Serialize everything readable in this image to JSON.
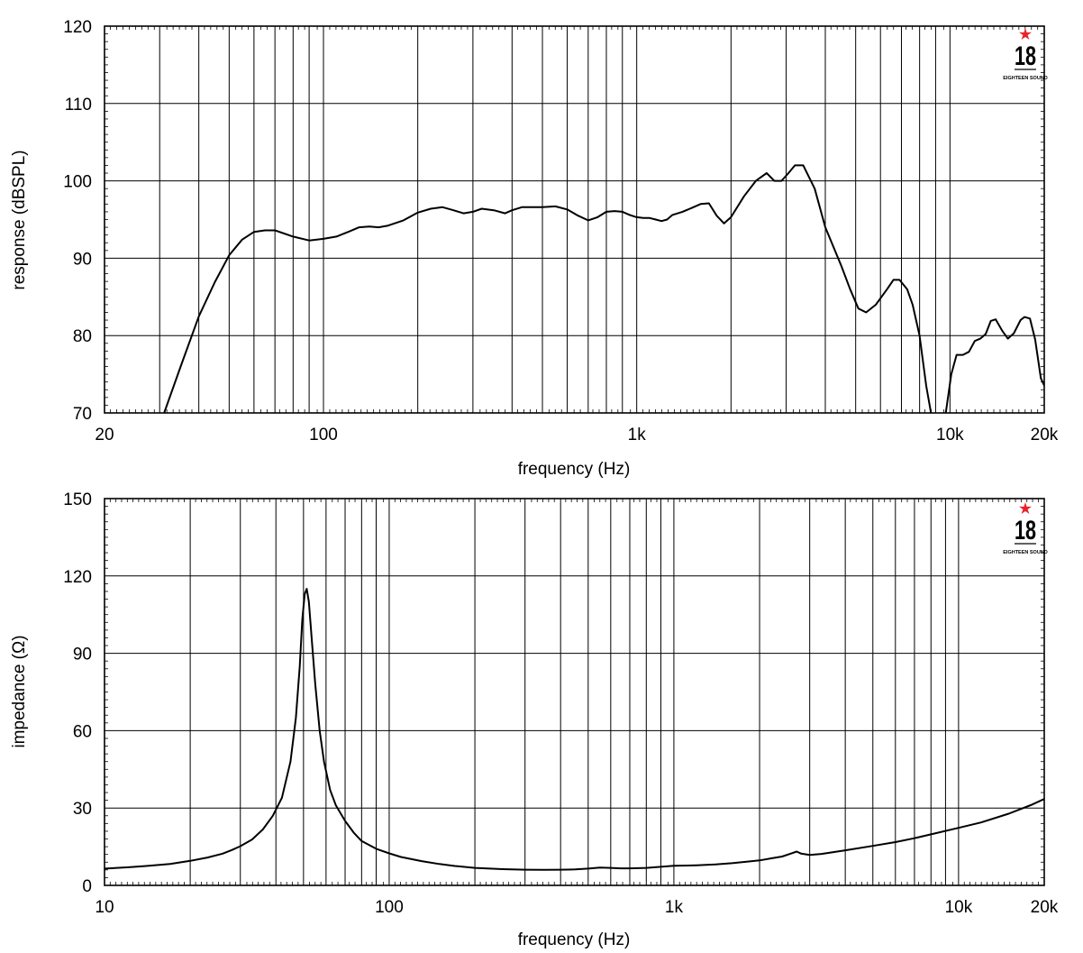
{
  "chart_data": [
    {
      "type": "line",
      "title": "",
      "xlabel": "frequency (Hz)",
      "ylabel": "response (dBSPL)",
      "xscale": "log",
      "xlim": [
        20,
        20000
      ],
      "ylim": [
        70,
        120
      ],
      "grid": true,
      "xticks": [
        20,
        100,
        1000,
        10000,
        20000
      ],
      "xticklabels": [
        "20",
        "100",
        "1k",
        "10k",
        "20k"
      ],
      "yticks": [
        70,
        80,
        90,
        100,
        110,
        120
      ],
      "yticklabels": [
        "70",
        "80",
        "90",
        "100",
        "110",
        "120"
      ],
      "logo": {
        "number": "18",
        "text": "EIGHTEEN SOUND",
        "accent": "#e8242c"
      },
      "line_color": "#000000",
      "series": [
        {
          "segments": [
            [
              [
                31,
                70
              ],
              [
                35,
                76
              ],
              [
                40,
                82.5
              ],
              [
                45,
                86.9
              ],
              [
                50,
                90.4
              ],
              [
                55,
                92.4
              ],
              [
                60,
                93.4
              ],
              [
                65,
                93.6
              ],
              [
                70,
                93.6
              ],
              [
                80,
                92.8
              ],
              [
                90,
                92.3
              ],
              [
                100,
                92.5
              ],
              [
                110,
                92.8
              ],
              [
                120,
                93.4
              ],
              [
                130,
                94
              ],
              [
                140,
                94.1
              ],
              [
                150,
                94
              ],
              [
                160,
                94.2
              ],
              [
                180,
                94.9
              ],
              [
                200,
                95.9
              ],
              [
                220,
                96.4
              ],
              [
                240,
                96.6
              ],
              [
                260,
                96.2
              ],
              [
                280,
                95.8
              ],
              [
                300,
                96
              ],
              [
                320,
                96.4
              ],
              [
                350,
                96.2
              ],
              [
                380,
                95.8
              ],
              [
                400,
                96.2
              ],
              [
                430,
                96.6
              ],
              [
                470,
                96.6
              ],
              [
                500,
                96.6
              ],
              [
                550,
                96.7
              ],
              [
                600,
                96.3
              ],
              [
                650,
                95.5
              ],
              [
                700,
                94.9
              ],
              [
                750,
                95.3
              ],
              [
                800,
                96
              ],
              [
                850,
                96.1
              ],
              [
                900,
                96
              ],
              [
                950,
                95.6
              ],
              [
                1000,
                95.3
              ],
              [
                1050,
                95.2
              ],
              [
                1100,
                95.2
              ],
              [
                1150,
                95
              ],
              [
                1200,
                94.8
              ],
              [
                1250,
                95
              ],
              [
                1300,
                95.6
              ],
              [
                1400,
                96
              ],
              [
                1500,
                96.5
              ],
              [
                1600,
                97
              ],
              [
                1700,
                97.1
              ],
              [
                1800,
                95.5
              ],
              [
                1900,
                94.5
              ],
              [
                2000,
                95.3
              ],
              [
                2200,
                98
              ],
              [
                2400,
                100
              ],
              [
                2600,
                101
              ],
              [
                2750,
                100
              ],
              [
                2900,
                100
              ],
              [
                3050,
                101
              ],
              [
                3200,
                102
              ],
              [
                3400,
                102
              ],
              [
                3700,
                99
              ],
              [
                4000,
                94
              ],
              [
                4500,
                89
              ],
              [
                4800,
                86
              ],
              [
                5100,
                83.5
              ],
              [
                5400,
                83
              ],
              [
                5800,
                84
              ],
              [
                6300,
                86
              ],
              [
                6600,
                87.2
              ],
              [
                6900,
                87.2
              ],
              [
                7300,
                86
              ],
              [
                7600,
                84
              ],
              [
                8000,
                80
              ],
              [
                8400,
                73.5
              ],
              [
                8700,
                70
              ]
            ],
            [
              [
                9700,
                70
              ],
              [
                10100,
                75
              ],
              [
                10500,
                77.5
              ],
              [
                11000,
                77.5
              ],
              [
                11500,
                77.9
              ],
              [
                12000,
                79.3
              ],
              [
                12500,
                79.6
              ],
              [
                13000,
                80.2
              ],
              [
                13500,
                81.9
              ],
              [
                14000,
                82.1
              ],
              [
                14700,
                80.6
              ],
              [
                15300,
                79.6
              ],
              [
                16000,
                80.3
              ],
              [
                16800,
                82
              ],
              [
                17300,
                82.4
              ],
              [
                18000,
                82.2
              ],
              [
                18700,
                79.5
              ],
              [
                19500,
                74.5
              ],
              [
                20300,
                73
              ],
              [
                21000,
                73.5
              ],
              [
                22000,
                72.3
              ],
              [
                23000,
                70
              ]
            ]
          ]
        }
      ]
    },
    {
      "type": "line",
      "title": "",
      "xlabel": "frequency (Hz)",
      "ylabel": "impedance (Ω)",
      "xscale": "log",
      "xlim": [
        10,
        20000
      ],
      "ylim": [
        0,
        150
      ],
      "grid": true,
      "xticks": [
        10,
        100,
        1000,
        10000,
        20000
      ],
      "xticklabels": [
        "10",
        "100",
        "1k",
        "10k",
        "20k"
      ],
      "yticks": [
        0,
        30,
        60,
        90,
        120,
        150
      ],
      "yticklabels": [
        "0",
        "30",
        "60",
        "90",
        "120",
        "150"
      ],
      "logo": {
        "number": "18",
        "text": "EIGHTEEN SOUND",
        "accent": "#e8242c"
      },
      "line_color": "#000000",
      "series": [
        {
          "segments": [
            [
              [
                10,
                6.5
              ],
              [
                12,
                7
              ],
              [
                14,
                7.5
              ],
              [
                17,
                8.3
              ],
              [
                20,
                9.5
              ],
              [
                23,
                10.8
              ],
              [
                26,
                12.3
              ],
              [
                28,
                13.7
              ],
              [
                30,
                15.2
              ],
              [
                33,
                17.8
              ],
              [
                36,
                21.7
              ],
              [
                39,
                27
              ],
              [
                42,
                34
              ],
              [
                45,
                48
              ],
              [
                47,
                65
              ],
              [
                48.5,
                85
              ],
              [
                49.5,
                103
              ],
              [
                50.5,
                113
              ],
              [
                51.3,
                115
              ],
              [
                52.2,
                110
              ],
              [
                53.5,
                95
              ],
              [
                55,
                78
              ],
              [
                57,
                60
              ],
              [
                59,
                48
              ],
              [
                62,
                37
              ],
              [
                65,
                31
              ],
              [
                70,
                25
              ],
              [
                75,
                20.5
              ],
              [
                80,
                17.2
              ],
              [
                90,
                14.2
              ],
              [
                100,
                12.4
              ],
              [
                110,
                11
              ],
              [
                130,
                9.4
              ],
              [
                150,
                8.3
              ],
              [
                170,
                7.5
              ],
              [
                200,
                6.8
              ],
              [
                250,
                6.3
              ],
              [
                300,
                6.1
              ],
              [
                350,
                6
              ],
              [
                400,
                6.1
              ],
              [
                450,
                6.2
              ],
              [
                500,
                6.5
              ],
              [
                550,
                6.9
              ],
              [
                600,
                6.8
              ],
              [
                650,
                6.6
              ],
              [
                700,
                6.6
              ],
              [
                800,
                6.8
              ],
              [
                900,
                7.2
              ],
              [
                1000,
                7.6
              ],
              [
                1100,
                7.7
              ],
              [
                1200,
                7.8
              ],
              [
                1400,
                8.1
              ],
              [
                1600,
                8.6
              ],
              [
                1800,
                9.2
              ],
              [
                2000,
                9.7
              ],
              [
                2200,
                10.5
              ],
              [
                2400,
                11.2
              ],
              [
                2600,
                12.5
              ],
              [
                2700,
                13.1
              ],
              [
                2800,
                12.3
              ],
              [
                3000,
                11.8
              ],
              [
                3300,
                12.2
              ],
              [
                4000,
                13.6
              ],
              [
                5000,
                15.3
              ],
              [
                6000,
                16.8
              ],
              [
                7000,
                18.3
              ],
              [
                8000,
                19.8
              ],
              [
                10000,
                22.3
              ],
              [
                12000,
                24.4
              ],
              [
                15000,
                27.8
              ],
              [
                18000,
                31.2
              ],
              [
                20000,
                33.5
              ]
            ]
          ]
        }
      ]
    }
  ]
}
